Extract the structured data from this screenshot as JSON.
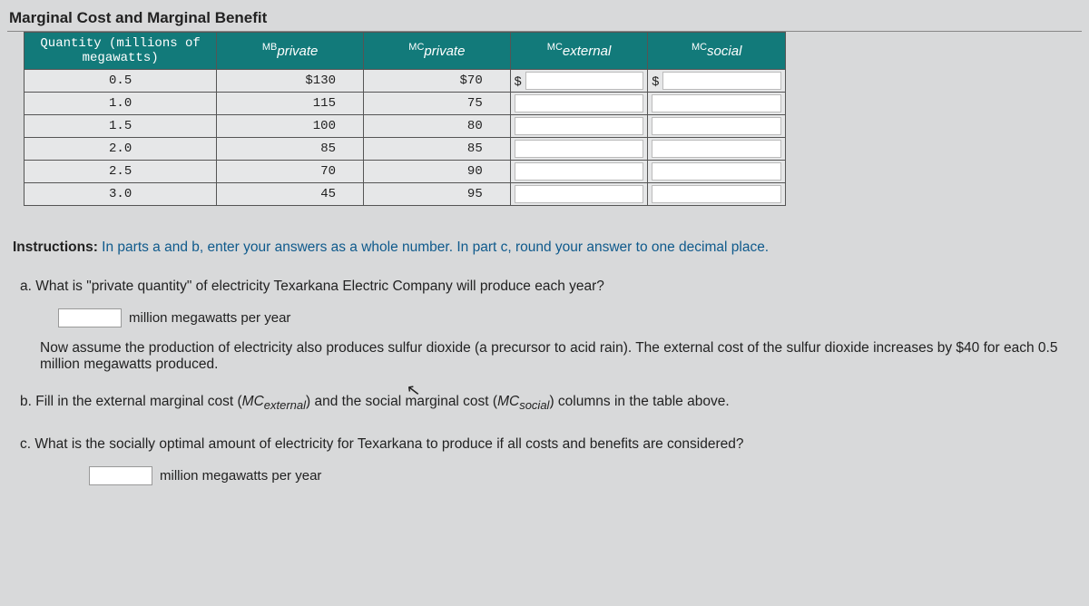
{
  "title": "Marginal Cost and Marginal Benefit",
  "table": {
    "headers": {
      "qty_l1": "Quantity (millions of",
      "qty_l2": "megawatts)",
      "mb_sup": "MB",
      "mb_sub": "private",
      "mcp_sup": "MC",
      "mcp_sub": "private",
      "mce_sup": "MC",
      "mce_sub": "external",
      "mcs_sup": "MC",
      "mcs_sub": "social"
    },
    "dollar": "$",
    "rows": [
      {
        "q": "0.5",
        "mb": "$130",
        "mcp": "$70"
      },
      {
        "q": "1.0",
        "mb": "115",
        "mcp": "75"
      },
      {
        "q": "1.5",
        "mb": "100",
        "mcp": "80"
      },
      {
        "q": "2.0",
        "mb": "85",
        "mcp": "85"
      },
      {
        "q": "2.5",
        "mb": "70",
        "mcp": "90"
      },
      {
        "q": "3.0",
        "mb": "45",
        "mcp": "95"
      }
    ]
  },
  "instructions": {
    "label": "Instructions:",
    "text": " In parts a and b, enter your answers as a whole number. In part c, round your answer to one decimal place."
  },
  "qa": {
    "text": "a. What is \"private quantity\" of electricity Texarkana Electric Company will produce each year?",
    "unit": "million megawatts per year"
  },
  "middle": {
    "text": "Now assume the production of electricity also produces sulfur dioxide (a precursor to acid rain). The external cost of the sulfur dioxide increases by $40 for each 0.5 million megawatts produced."
  },
  "qb": {
    "pre": "b. Fill in the external marginal cost (",
    "mc1_sup": "MC",
    "mc1_sub": "external",
    "mid": ") and the social marginal cost (",
    "mc2_sup": "MC",
    "mc2_sub": "social",
    "post": ") columns in the table above."
  },
  "qc": {
    "text": "c. What is the socially optimal amount of electricity for Texarkana to produce if all costs and benefits are considered?",
    "unit": "million megawatts per year"
  }
}
